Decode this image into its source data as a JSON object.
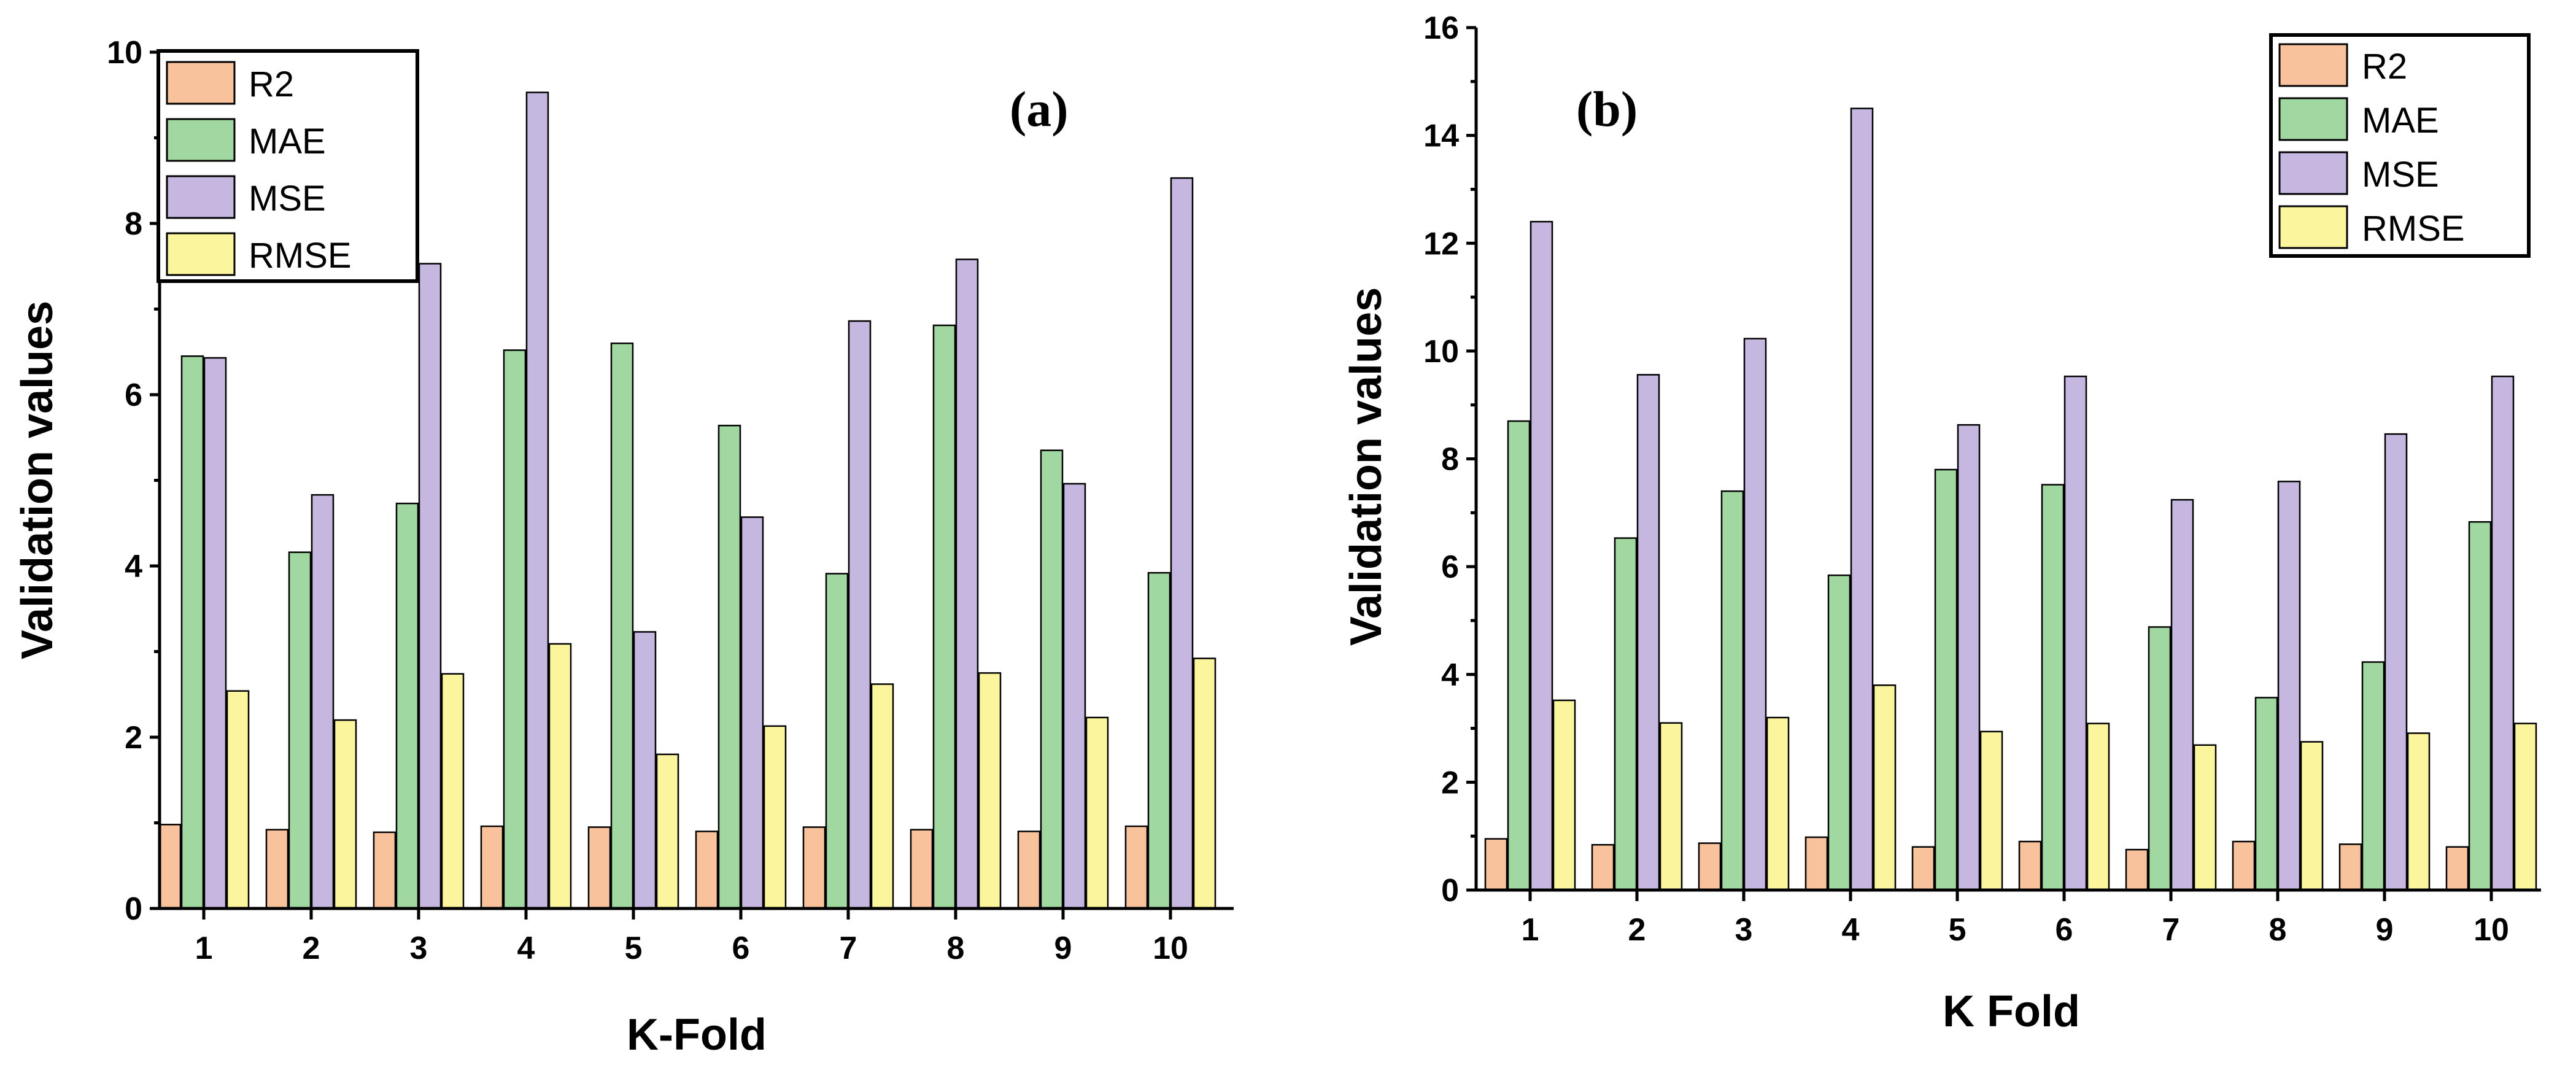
{
  "series_names": [
    "R2",
    "MAE",
    "MSE",
    "RMSE"
  ],
  "series_colors": [
    "#f8c29c",
    "#a1d8a1",
    "#c6b7e0",
    "#fbf59e"
  ],
  "chart_data": [
    {
      "type": "bar",
      "panel_label": "(a)",
      "xlabel": "K-Fold",
      "ylabel": "Validation values",
      "ylim": [
        0,
        10
      ],
      "yticks": [
        "0",
        "2",
        "4",
        "6",
        "8",
        "10"
      ],
      "categories": [
        "1",
        "2",
        "3",
        "4",
        "5",
        "6",
        "7",
        "8",
        "9",
        "10"
      ],
      "legend_position": "top-left",
      "series": [
        {
          "name": "R2",
          "values": [
            0.98,
            0.92,
            0.89,
            0.96,
            0.95,
            0.9,
            0.95,
            0.92,
            0.9,
            0.96
          ]
        },
        {
          "name": "MAE",
          "values": [
            6.45,
            4.16,
            4.73,
            6.52,
            6.6,
            5.64,
            3.91,
            6.81,
            5.35,
            3.92
          ]
        },
        {
          "name": "MSE",
          "values": [
            6.43,
            4.83,
            7.53,
            9.53,
            3.23,
            4.57,
            6.86,
            7.58,
            4.96,
            8.53
          ]
        },
        {
          "name": "RMSE",
          "values": [
            2.54,
            2.2,
            2.74,
            3.09,
            1.8,
            2.13,
            2.62,
            2.75,
            2.23,
            2.92
          ]
        }
      ]
    },
    {
      "type": "bar",
      "panel_label": "(b)",
      "xlabel": "K Fold",
      "ylabel": "Validation values",
      "ylim": [
        0,
        16
      ],
      "yticks": [
        "0",
        "2",
        "4",
        "6",
        "8",
        "10",
        "12",
        "14",
        "16"
      ],
      "categories": [
        "1",
        "2",
        "3",
        "4",
        "5",
        "6",
        "7",
        "8",
        "9",
        "10"
      ],
      "legend_position": "top-right",
      "series": [
        {
          "name": "R2",
          "values": [
            0.95,
            0.84,
            0.87,
            0.98,
            0.8,
            0.9,
            0.75,
            0.9,
            0.85,
            0.8
          ]
        },
        {
          "name": "MAE",
          "values": [
            8.7,
            6.53,
            7.4,
            5.84,
            7.8,
            7.52,
            4.88,
            3.57,
            4.23,
            6.83
          ]
        },
        {
          "name": "MSE",
          "values": [
            12.4,
            9.56,
            10.23,
            14.5,
            8.63,
            9.53,
            7.24,
            7.58,
            8.46,
            9.53
          ]
        },
        {
          "name": "RMSE",
          "values": [
            3.52,
            3.1,
            3.2,
            3.8,
            2.94,
            3.09,
            2.69,
            2.75,
            2.91,
            3.09
          ]
        }
      ]
    }
  ]
}
